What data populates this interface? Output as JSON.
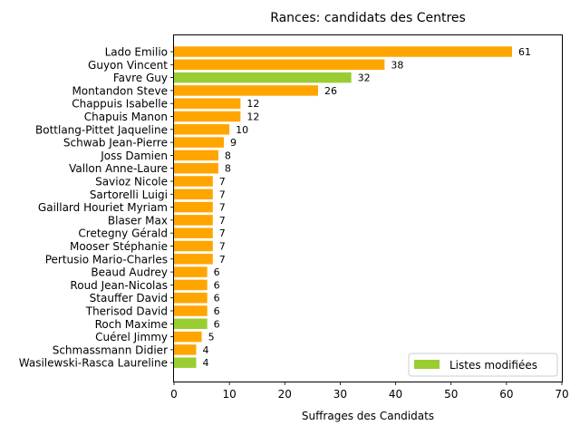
{
  "chart_data": {
    "type": "bar",
    "orientation": "horizontal",
    "title": "Rances: candidats des Centres",
    "xlabel": "Suffrages des Candidats",
    "ylabel": "",
    "xlim": [
      0,
      70
    ],
    "x_ticks": [
      0,
      10,
      20,
      30,
      40,
      50,
      60,
      70
    ],
    "grid": false,
    "legend": {
      "placement": "lower-right",
      "entries": [
        {
          "label": "Listes modifiées",
          "color": "#9acd32"
        }
      ]
    },
    "colors": {
      "default": "#ffa500",
      "highlight": "#9acd32"
    },
    "categories": [
      "Lado Emilio",
      "Guyon Vincent",
      "Favre Guy",
      "Montandon Steve",
      "Chappuis Isabelle",
      "Chapuis Manon",
      "Bottlang-Pittet Jaqueline",
      "Schwab Jean-Pierre",
      "Joss Damien",
      "Vallon Anne-Laure",
      "Savioz Nicole",
      "Sartorelli Luigi",
      "Gaillard Houriet Myriam",
      "Blaser Max",
      "Cretegny Gérald",
      "Mooser Stéphanie",
      "Pertusio Mario-Charles",
      "Beaud Audrey",
      "Roud Jean-Nicolas",
      "Stauffer David",
      "Therisod David",
      "Roch Maxime",
      "Cuérel Jimmy",
      "Schmassmann Didier",
      "Wasilewski-Rasca Laureline"
    ],
    "values": [
      61,
      38,
      32,
      26,
      12,
      12,
      10,
      9,
      8,
      8,
      7,
      7,
      7,
      7,
      7,
      7,
      7,
      6,
      6,
      6,
      6,
      6,
      5,
      4,
      4
    ],
    "highlighted": [
      false,
      false,
      true,
      false,
      false,
      false,
      false,
      false,
      false,
      false,
      false,
      false,
      false,
      false,
      false,
      false,
      false,
      false,
      false,
      false,
      false,
      true,
      false,
      false,
      true
    ]
  }
}
